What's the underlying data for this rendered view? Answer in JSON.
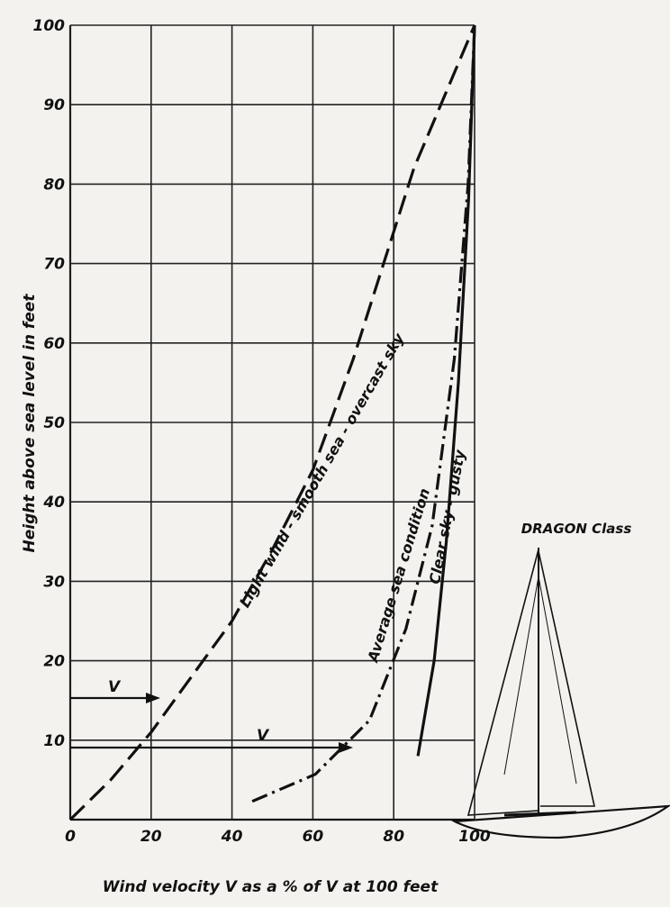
{
  "chart_data": {
    "type": "line",
    "x_label": "Wind velocity V as a % of V at 100 feet",
    "y_label": "Height above sea level in feet",
    "xlim": [
      0,
      100
    ],
    "ylim": [
      0,
      100
    ],
    "xticks": [
      0,
      20,
      40,
      60,
      80,
      100
    ],
    "yticks": [
      10,
      20,
      30,
      40,
      50,
      60,
      70,
      80,
      90,
      100
    ],
    "grid": true,
    "series": [
      {
        "name": "Light wind - smooth sea - overcast sky",
        "color": "#111111",
        "dash": "dashed",
        "x": [
          0,
          10,
          20,
          30,
          40,
          50,
          60,
          65,
          70,
          80,
          85,
          90,
          95,
          100
        ],
        "values": [
          0,
          5,
          11,
          18,
          25,
          34,
          44,
          51,
          58,
          74,
          82,
          88,
          94,
          100
        ]
      },
      {
        "name": "Average sea condition",
        "color": "#111111",
        "dash": "dashdot",
        "x": [
          45,
          60.6,
          74,
          83,
          89.5,
          95,
          98.4,
          100
        ],
        "values": [
          2.3,
          5.7,
          12.5,
          24,
          37,
          58,
          80,
          100
        ]
      },
      {
        "name": "Clear sky - gusty",
        "color": "#111111",
        "dash": "solid",
        "x": [
          86,
          90,
          93,
          96,
          98.5,
          100
        ],
        "values": [
          8,
          20,
          35,
          55,
          78,
          100
        ]
      }
    ],
    "annotations": [
      "V",
      "V",
      "DRAGON Class"
    ]
  }
}
